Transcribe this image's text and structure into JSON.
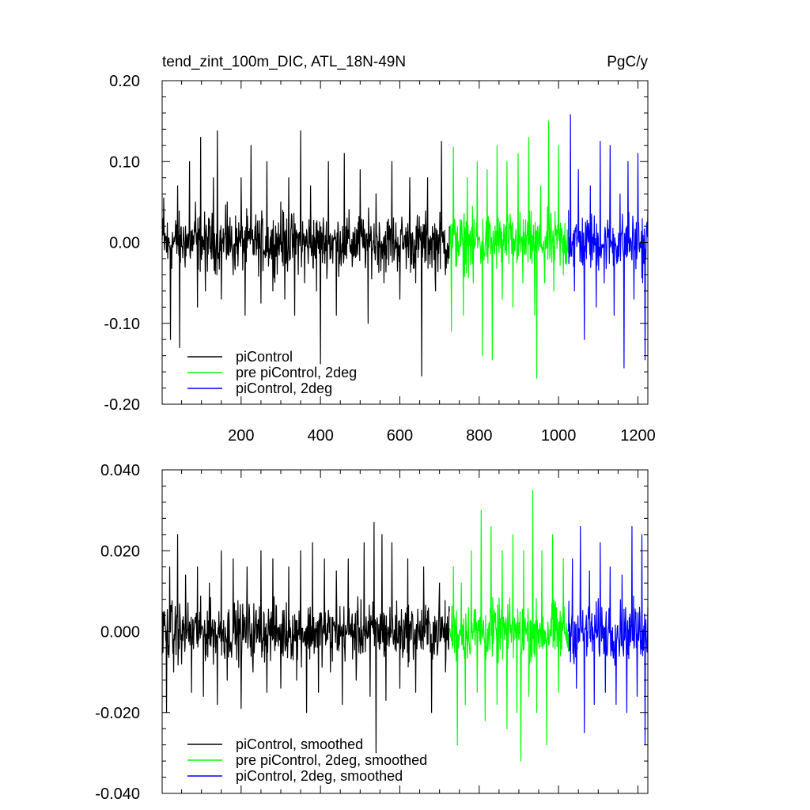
{
  "chart_data": [
    {
      "type": "line",
      "title_left": "tend_zint_100m_DIC, ATL_18N-49N",
      "title_right": "PgC/y",
      "xlim": [
        1,
        1225
      ],
      "ylim": [
        -0.2,
        0.2
      ],
      "x_ticks": [
        200,
        400,
        600,
        800,
        1000,
        1200
      ],
      "x_tick_labels": [
        "200",
        "400",
        "600",
        "800",
        "1000",
        "1200"
      ],
      "y_ticks": [
        -0.2,
        -0.1,
        0.0,
        0.1,
        0.2
      ],
      "y_tick_labels": [
        "-0.20",
        "-0.10",
        "0.00",
        "0.10",
        "0.20"
      ],
      "legend_position": "bottom-left",
      "series": [
        {
          "name": "piControl",
          "color": "#000000",
          "x_range": [
            1,
            725
          ],
          "points": [
            [
              5,
              0.055
            ],
            [
              15,
              -0.02
            ],
            [
              22,
              -0.12
            ],
            [
              40,
              0.07
            ],
            [
              45,
              -0.13
            ],
            [
              60,
              0.02
            ],
            [
              70,
              0.1
            ],
            [
              85,
              0.05
            ],
            [
              90,
              -0.08
            ],
            [
              98,
              0.13
            ],
            [
              110,
              -0.06
            ],
            [
              130,
              0.08
            ],
            [
              140,
              0.138
            ],
            [
              150,
              -0.07
            ],
            [
              165,
              0.05
            ],
            [
              180,
              -0.04
            ],
            [
              200,
              0.08
            ],
            [
              210,
              -0.09
            ],
            [
              225,
              0.12
            ],
            [
              235,
              0.02
            ],
            [
              250,
              -0.075
            ],
            [
              265,
              0.1
            ],
            [
              280,
              -0.06
            ],
            [
              300,
              0.05
            ],
            [
              310,
              -0.07
            ],
            [
              320,
              0.08
            ],
            [
              335,
              -0.09
            ],
            [
              350,
              0.138
            ],
            [
              360,
              -0.05
            ],
            [
              375,
              0.07
            ],
            [
              390,
              -0.06
            ],
            [
              400,
              -0.15
            ],
            [
              420,
              0.1
            ],
            [
              440,
              -0.09
            ],
            [
              460,
              0.11
            ],
            [
              480,
              -0.03
            ],
            [
              500,
              0.09
            ],
            [
              520,
              -0.1
            ],
            [
              540,
              0.06
            ],
            [
              560,
              -0.05
            ],
            [
              580,
              0.1
            ],
            [
              600,
              -0.07
            ],
            [
              625,
              0.08
            ],
            [
              640,
              -0.05
            ],
            [
              655,
              -0.165
            ],
            [
              670,
              0.08
            ],
            [
              690,
              -0.06
            ],
            [
              705,
              0.125
            ],
            [
              715,
              -0.04
            ],
            [
              725,
              0.02
            ]
          ]
        },
        {
          "name": "pre piControl, 2deg",
          "color": "#00ff00",
          "x_range": [
            725,
            1025
          ],
          "points": [
            [
              725,
              0.0
            ],
            [
              730,
              -0.11
            ],
            [
              735,
              0.118
            ],
            [
              745,
              0.02
            ],
            [
              760,
              -0.09
            ],
            [
              770,
              0.08
            ],
            [
              785,
              -0.05
            ],
            [
              795,
              0.1
            ],
            [
              808,
              -0.14
            ],
            [
              820,
              0.09
            ],
            [
              833,
              -0.145
            ],
            [
              845,
              0.12
            ],
            [
              858,
              -0.07
            ],
            [
              870,
              0.1
            ],
            [
              885,
              -0.08
            ],
            [
              898,
              0.11
            ],
            [
              910,
              -0.05
            ],
            [
              925,
              0.13
            ],
            [
              940,
              -0.09
            ],
            [
              945,
              -0.168
            ],
            [
              955,
              0.07
            ],
            [
              965,
              -0.05
            ],
            [
              975,
              0.15
            ],
            [
              988,
              -0.06
            ],
            [
              1000,
              0.12
            ],
            [
              1012,
              -0.04
            ],
            [
              1025,
              0.03
            ]
          ]
        },
        {
          "name": "piControl, 2deg",
          "color": "#0000ff",
          "x_range": [
            1025,
            1225
          ],
          "points": [
            [
              1025,
              0.04
            ],
            [
              1030,
              0.158
            ],
            [
              1040,
              -0.06
            ],
            [
              1050,
              0.09
            ],
            [
              1065,
              -0.12
            ],
            [
              1080,
              0.07
            ],
            [
              1095,
              -0.08
            ],
            [
              1105,
              0.125
            ],
            [
              1115,
              -0.05
            ],
            [
              1130,
              0.12
            ],
            [
              1140,
              -0.09
            ],
            [
              1155,
              0.06
            ],
            [
              1165,
              -0.155
            ],
            [
              1175,
              0.1
            ],
            [
              1190,
              -0.07
            ],
            [
              1200,
              0.11
            ],
            [
              1212,
              -0.05
            ],
            [
              1218,
              -0.145
            ],
            [
              1225,
              0.04
            ]
          ]
        }
      ]
    },
    {
      "type": "line",
      "xlim": [
        1,
        1225
      ],
      "ylim": [
        -0.04,
        0.04
      ],
      "x_ticks": [
        200,
        400,
        600,
        800,
        1000,
        1200
      ],
      "y_ticks": [
        -0.04,
        -0.02,
        0.0,
        0.02,
        0.04
      ],
      "y_tick_labels": [
        "-0.040",
        "-0.020",
        "0.000",
        "0.020",
        "0.040"
      ],
      "legend_position": "bottom-left",
      "series": [
        {
          "name": "piControl, smoothed",
          "color": "#000000",
          "x_range": [
            1,
            725
          ],
          "points": [
            [
              5,
              0.005
            ],
            [
              12,
              -0.02
            ],
            [
              20,
              0.016
            ],
            [
              30,
              -0.01
            ],
            [
              40,
              0.024
            ],
            [
              50,
              -0.008
            ],
            [
              60,
              0.014
            ],
            [
              75,
              -0.015
            ],
            [
              90,
              0.016
            ],
            [
              105,
              -0.016
            ],
            [
              120,
              0.012
            ],
            [
              140,
              -0.018
            ],
            [
              150,
              0.02
            ],
            [
              165,
              -0.012
            ],
            [
              180,
              0.018
            ],
            [
              200,
              -0.019
            ],
            [
              215,
              0.016
            ],
            [
              230,
              -0.01
            ],
            [
              250,
              0.02
            ],
            [
              265,
              -0.015
            ],
            [
              280,
              0.018
            ],
            [
              300,
              -0.014
            ],
            [
              320,
              0.016
            ],
            [
              340,
              -0.012
            ],
            [
              350,
              0.02
            ],
            [
              365,
              -0.02
            ],
            [
              380,
              0.022
            ],
            [
              395,
              -0.015
            ],
            [
              410,
              0.018
            ],
            [
              425,
              -0.01
            ],
            [
              440,
              0.015
            ],
            [
              455,
              -0.018
            ],
            [
              470,
              0.018
            ],
            [
              490,
              -0.012
            ],
            [
              510,
              0.022
            ],
            [
              525,
              -0.016
            ],
            [
              535,
              0.027
            ],
            [
              540,
              -0.03
            ],
            [
              555,
              0.024
            ],
            [
              565,
              -0.017
            ],
            [
              580,
              0.022
            ],
            [
              600,
              -0.014
            ],
            [
              620,
              0.018
            ],
            [
              640,
              -0.015
            ],
            [
              660,
              0.016
            ],
            [
              680,
              -0.02
            ],
            [
              700,
              0.012
            ],
            [
              715,
              -0.01
            ],
            [
              725,
              0.005
            ]
          ]
        },
        {
          "name": "pre piControl, 2deg, smoothed",
          "color": "#00ff00",
          "x_range": [
            725,
            1025
          ],
          "points": [
            [
              725,
              0.0
            ],
            [
              735,
              0.016
            ],
            [
              745,
              -0.028
            ],
            [
              755,
              0.012
            ],
            [
              765,
              -0.018
            ],
            [
              780,
              0.02
            ],
            [
              795,
              -0.015
            ],
            [
              805,
              0.03
            ],
            [
              815,
              -0.022
            ],
            [
              830,
              0.026
            ],
            [
              845,
              -0.018
            ],
            [
              858,
              0.02
            ],
            [
              870,
              -0.024
            ],
            [
              885,
              0.024
            ],
            [
              895,
              -0.02
            ],
            [
              905,
              -0.032
            ],
            [
              912,
              0.02
            ],
            [
              925,
              -0.016
            ],
            [
              935,
              0.035
            ],
            [
              945,
              -0.02
            ],
            [
              958,
              0.02
            ],
            [
              970,
              -0.028
            ],
            [
              985,
              0.024
            ],
            [
              1000,
              -0.015
            ],
            [
              1012,
              0.018
            ],
            [
              1025,
              -0.005
            ]
          ]
        },
        {
          "name": "piControl, 2deg, smoothed",
          "color": "#0000ff",
          "x_range": [
            1025,
            1225
          ],
          "points": [
            [
              1025,
              0.0
            ],
            [
              1035,
              0.018
            ],
            [
              1045,
              -0.014
            ],
            [
              1055,
              0.026
            ],
            [
              1065,
              -0.025
            ],
            [
              1078,
              0.015
            ],
            [
              1090,
              -0.018
            ],
            [
              1105,
              0.022
            ],
            [
              1118,
              -0.015
            ],
            [
              1130,
              0.016
            ],
            [
              1145,
              -0.018
            ],
            [
              1160,
              0.014
            ],
            [
              1172,
              -0.02
            ],
            [
              1185,
              0.026
            ],
            [
              1198,
              -0.016
            ],
            [
              1210,
              0.024
            ],
            [
              1218,
              -0.028
            ],
            [
              1225,
              0.006
            ]
          ]
        }
      ]
    }
  ]
}
